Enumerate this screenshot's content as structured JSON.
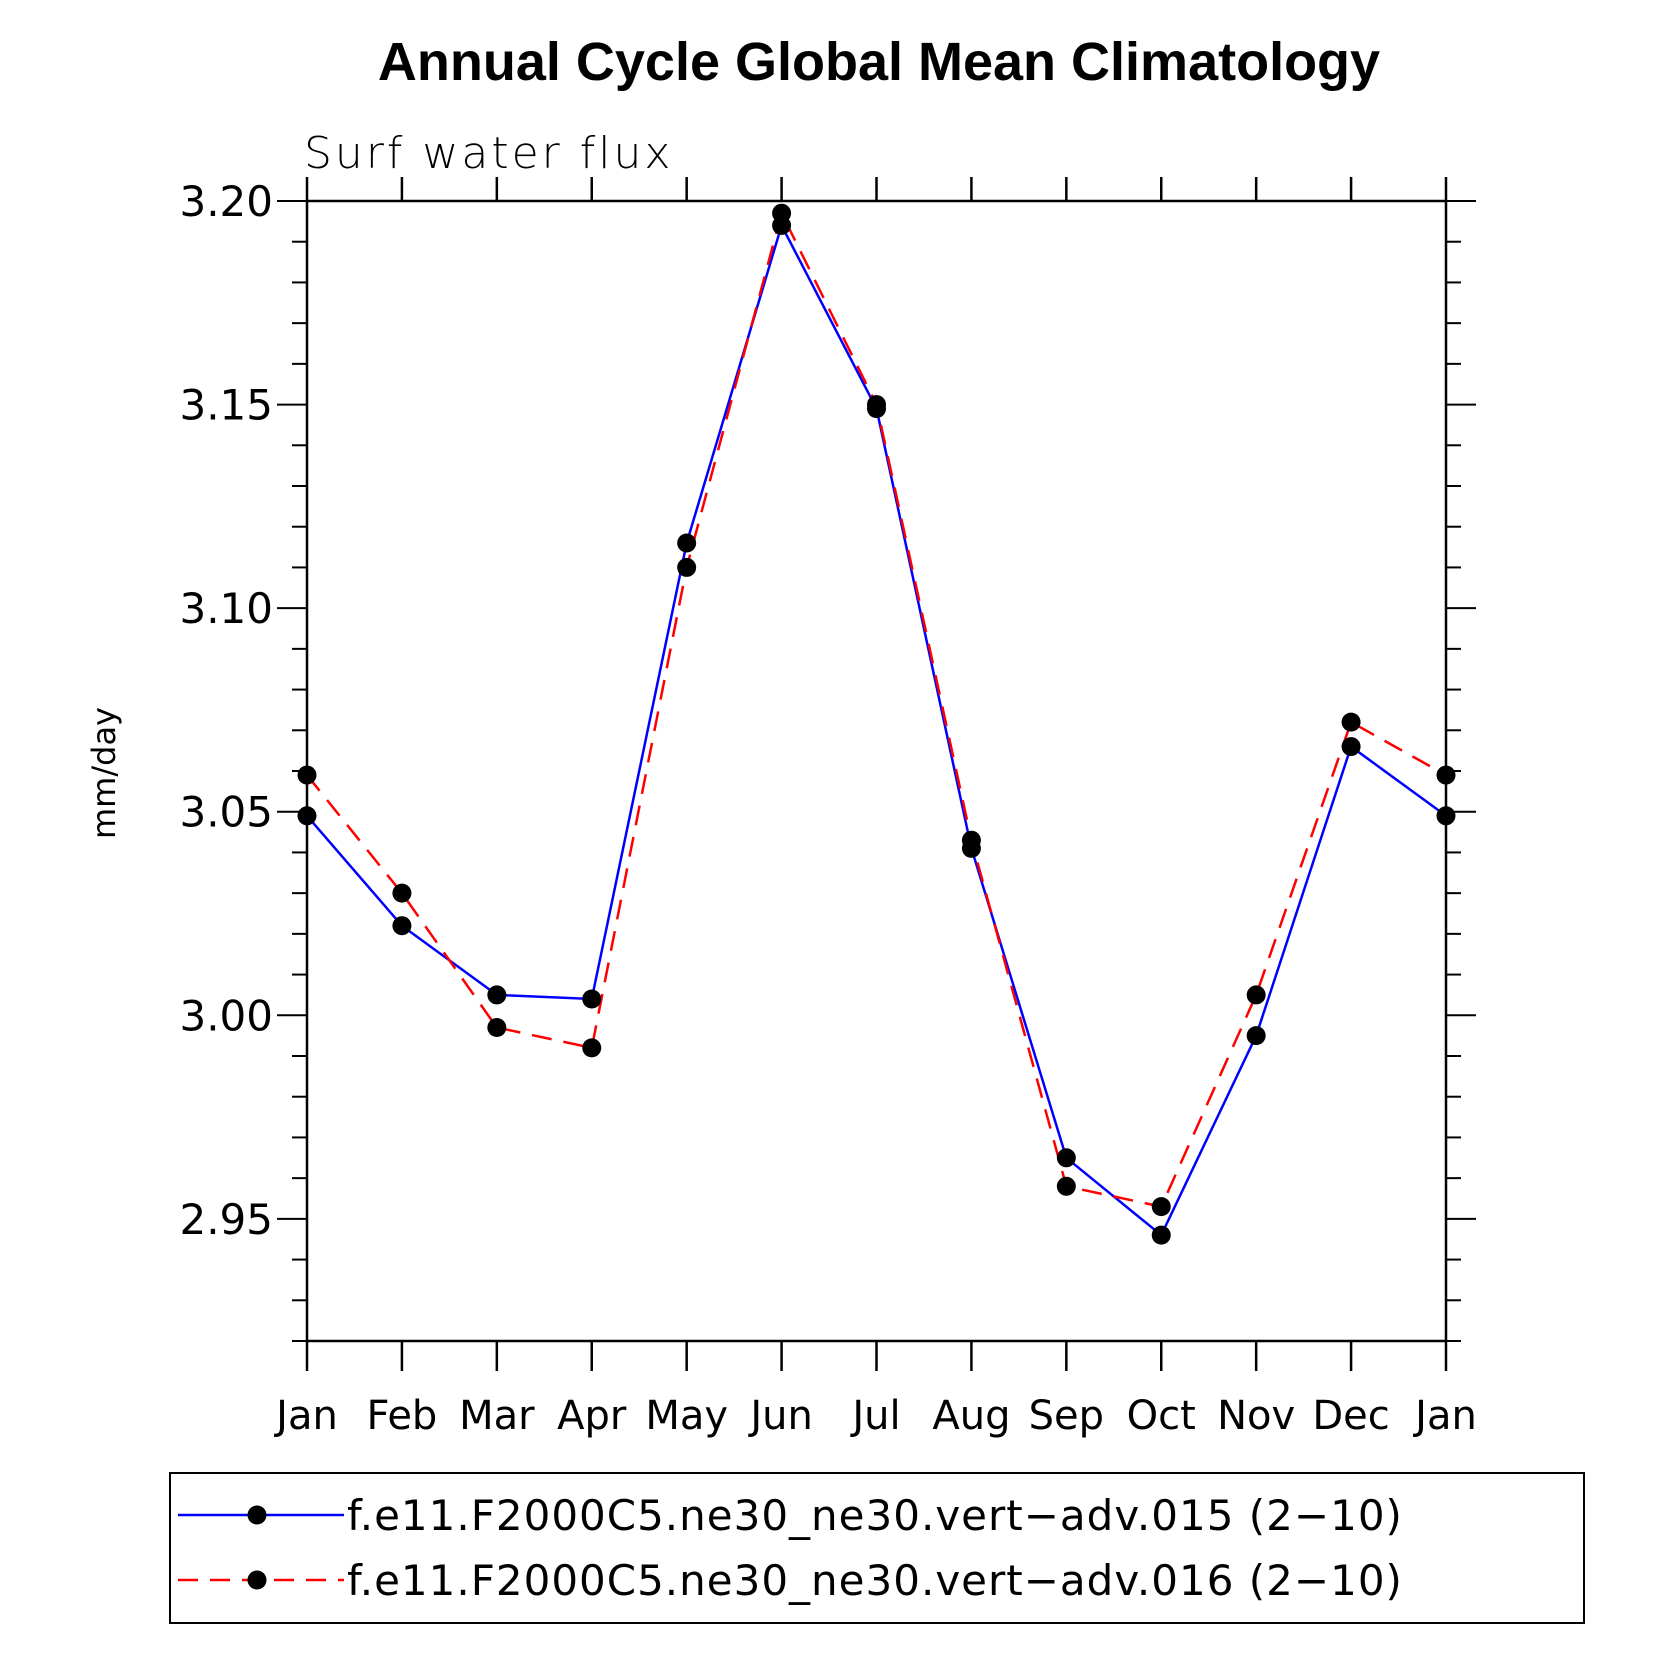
{
  "chart_data": {
    "type": "line",
    "title": "Annual Cycle Global Mean Climatology",
    "subtitle": "Surf water flux",
    "xlabel": "",
    "ylabel": "mm/day",
    "categories": [
      "Jan",
      "Feb",
      "Mar",
      "Apr",
      "May",
      "Jun",
      "Jul",
      "Aug",
      "Sep",
      "Oct",
      "Nov",
      "Dec",
      "Jan"
    ],
    "ylim": [
      2.92,
      3.2
    ],
    "yticks": [
      2.95,
      3.0,
      3.05,
      3.1,
      3.15,
      3.2
    ],
    "ytick_labels": [
      "2.95",
      "3.00",
      "3.05",
      "3.10",
      "3.15",
      "3.20"
    ],
    "grid": false,
    "legend_position": "bottom",
    "series": [
      {
        "name": "f.e11.F2000C5.ne30_ne30.vert−adv.015 (2−10)",
        "color": "#0000ff",
        "dash": "solid",
        "marker": "filled-circle",
        "values": [
          3.049,
          3.022,
          3.005,
          3.004,
          3.116,
          3.194,
          3.149,
          3.041,
          2.965,
          2.946,
          2.995,
          3.066,
          3.049
        ]
      },
      {
        "name": "f.e11.F2000C5.ne30_ne30.vert−adv.016 (2−10)",
        "color": "#ff0000",
        "dash": "dashed",
        "marker": "filled-circle",
        "values": [
          3.059,
          3.03,
          2.997,
          2.992,
          3.11,
          3.197,
          3.15,
          3.043,
          2.958,
          2.953,
          3.005,
          3.072,
          3.059
        ]
      }
    ]
  }
}
